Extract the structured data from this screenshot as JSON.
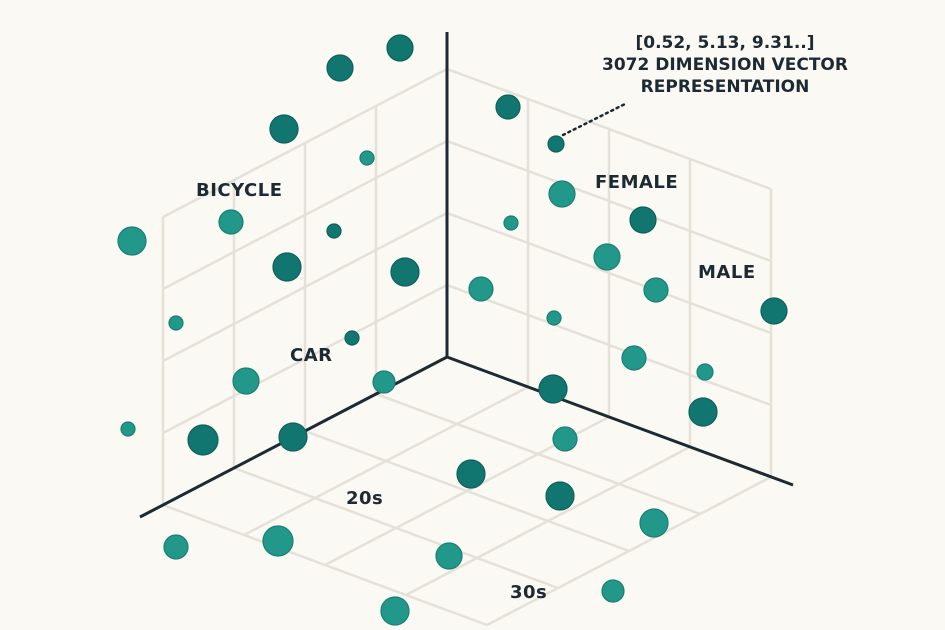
{
  "labels": {
    "bicycle": "BICYCLE",
    "car": "CAR",
    "female": "FEMALE",
    "male": "MALE",
    "age_20s": "20s",
    "age_30s": "30s"
  },
  "annotation": {
    "vector_values": "[0.52, 5.13, 9.31..]",
    "line1": "3072 DIMENSION VECTOR",
    "line2": "REPRESENTATION"
  },
  "colors": {
    "background": "#fbf9f3",
    "grid": "#e4e1d8",
    "axis": "#1d2a33",
    "dot_light": "#22988a",
    "dot_dark": "#127670",
    "text": "#1d2a33"
  }
}
